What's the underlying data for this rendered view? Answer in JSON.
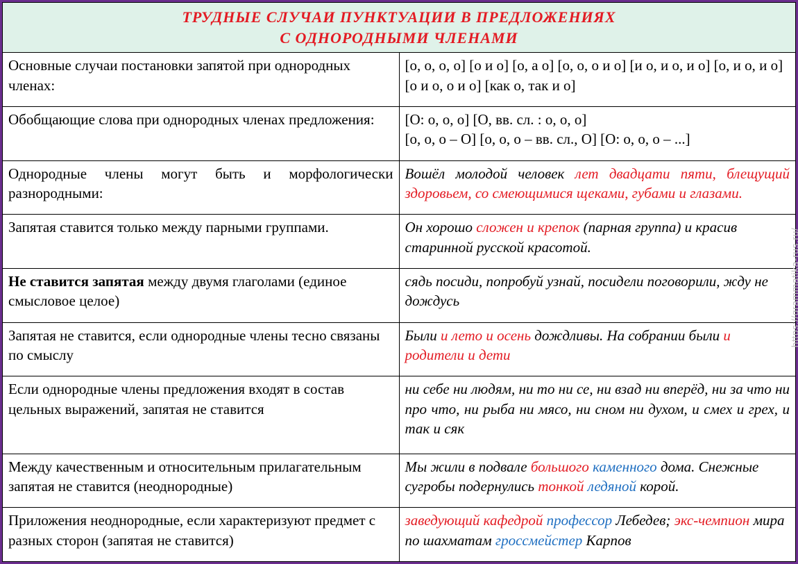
{
  "theme": {
    "border_color": "#6b2e8f",
    "header_bg": "#dff2e9",
    "header_text": "#e31b23",
    "red": "#e31b23",
    "blue": "#1f6fc1",
    "font_base": "Times New Roman",
    "font_size_cell": 21,
    "font_size_header": 22
  },
  "title": {
    "line1": "ТРУДНЫЕ  СЛУЧАИ  ПУНКТУАЦИИ  В ПРЕДЛОЖЕНИЯХ",
    "line2": "С ОДНОРОДНЫМИ ЧЛЕНАМИ"
  },
  "watermark": "https://grammatika-rus.ru/",
  "rows": [
    {
      "left": {
        "segments": [
          {
            "t": "Основные случаи постановки запятой при однородных членах:"
          }
        ]
      },
      "right": {
        "italic": false,
        "segments": [
          {
            "t": "[о, о, о, о] [о и о] [о, а о] [о, о, о и о] [и о, и о, и о] [о, и о, и о] [о и о, о и о] [как о, так и о]"
          }
        ]
      }
    },
    {
      "left": {
        "segments": [
          {
            "t": "Обобщающие слова при однородных членах предложения:"
          }
        ]
      },
      "right": {
        "italic": false,
        "segments": [
          {
            "t": "[О: о, о, о] [О, вв. сл. : о, о, о]"
          },
          {
            "br": true
          },
          {
            "t": "[о, о, о – О] [о, о, о – вв. сл., О] [О: о, о, о – ...]"
          }
        ]
      }
    },
    {
      "left": {
        "justify": true,
        "segments": [
          {
            "t": "Однородные члены могут быть и морфологически разнородными:"
          }
        ]
      },
      "right": {
        "italic": true,
        "justify": true,
        "segments": [
          {
            "t": "Вошёл молодой человек "
          },
          {
            "t": "лет двадцати пяти, блещущий здоровьем, со смеющимися щеками, губами и глазами.",
            "c": "red"
          }
        ]
      }
    },
    {
      "left": {
        "segments": [
          {
            "t": "Запятая ставится только между парными группами."
          }
        ]
      },
      "right": {
        "italic": true,
        "segments": [
          {
            "t": "Он хорошо "
          },
          {
            "t": "сложен и крепок",
            "c": "red"
          },
          {
            "t": " (парная группа) и красив старинной русской красотой."
          }
        ]
      }
    },
    {
      "left": {
        "segments": [
          {
            "t": "Не ставится запятая",
            "b": true
          },
          {
            "t": " между двумя глаголами (единое смысловое целое)"
          }
        ]
      },
      "right": {
        "italic": true,
        "segments": [
          {
            "t": "сядь посиди, попробуй узнай, посидели поговорили, жду не дождусь"
          }
        ]
      }
    },
    {
      "left": {
        "segments": [
          {
            "t": "Запятая не ставится,  если однородные члены тесно связаны по смыслу"
          }
        ]
      },
      "right": {
        "italic": true,
        "segments": [
          {
            "t": "Были "
          },
          {
            "t": "и лето и осень",
            "c": "red"
          },
          {
            "t": " дождливы. На собрании были  "
          },
          {
            "t": "и родители и дети",
            "c": "red"
          }
        ]
      }
    },
    {
      "left": {
        "segments": [
          {
            "t": "Если однородные члены предложения входят в состав цельных выражений, запятая не ставится"
          }
        ]
      },
      "right": {
        "italic": true,
        "justify": true,
        "segments": [
          {
            "t": "ни себе ни людям, ни то ни се, ни взад ни вперёд, ни за что ни про что, ни рыба ни мясо, ни сном ни духом, и смех и грех, и так и сяк"
          }
        ]
      }
    },
    {
      "left": {
        "segments": [
          {
            "t": "Между качественным и относительным прилагательным запятая не ставится (неоднородные)"
          }
        ]
      },
      "right": {
        "italic": true,
        "segments": [
          {
            "t": "Мы жили в подвале "
          },
          {
            "t": "большого ",
            "c": "red"
          },
          {
            "t": "каменного",
            "c": "blue"
          },
          {
            "t": " дома. Снежные сугробы подернулись "
          },
          {
            "t": "тонкой ",
            "c": "red"
          },
          {
            "t": "ледяной",
            "c": "blue"
          },
          {
            "t": " корой."
          }
        ]
      }
    },
    {
      "left": {
        "segments": [
          {
            "t": "Приложения неоднородные, если характеризуют предмет с разных сторон (запятая не ставится)"
          }
        ]
      },
      "right": {
        "italic": true,
        "segments": [
          {
            "t": "заведующий кафедрой ",
            "c": "red"
          },
          {
            "t": "профессор ",
            "c": "blue"
          },
          {
            "t": "Лебедев; "
          },
          {
            "t": "экс-чемпион ",
            "c": "red"
          },
          {
            "t": "мира по шахматам "
          },
          {
            "t": "гроссмейстер ",
            "c": "blue"
          },
          {
            "t": "Карпов"
          }
        ]
      }
    }
  ]
}
